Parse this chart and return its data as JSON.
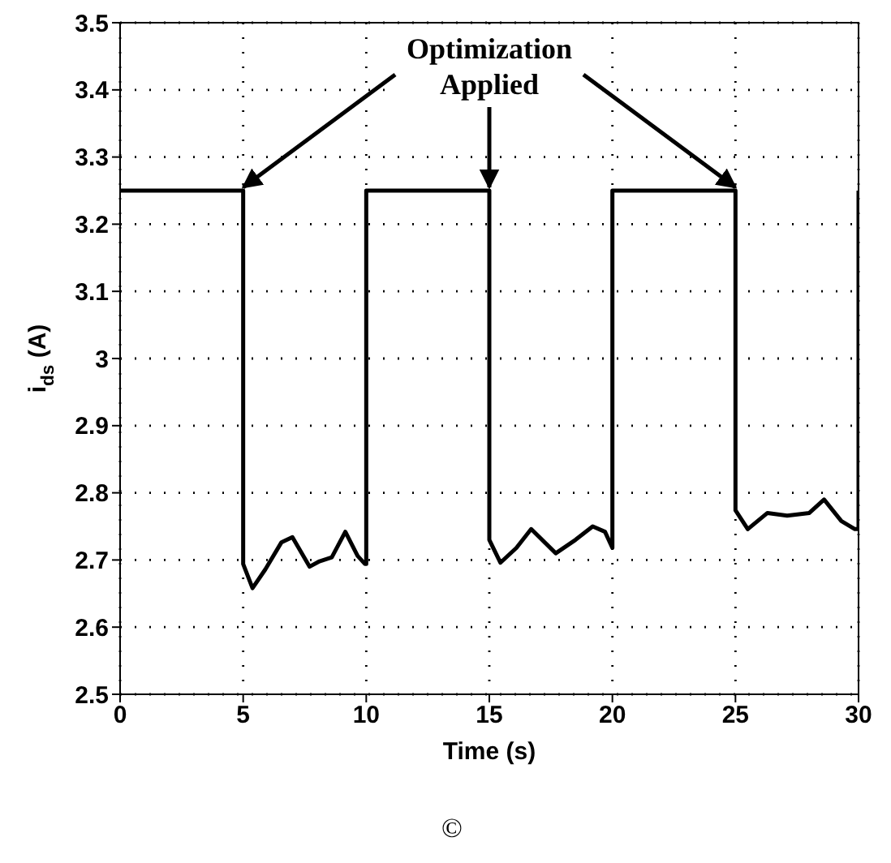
{
  "chart_data": {
    "type": "line",
    "xlabel": "Time (s)",
    "ylabel": "i$_{ds}$ (A)",
    "annotations": [
      {
        "text": "Optimization Applied",
        "x": 15,
        "y": 3.25
      },
      "©"
    ],
    "x": [
      0,
      5,
      5,
      5.38,
      5.9,
      6.55,
      7.0,
      7.7,
      8.1,
      8.6,
      9.15,
      9.65,
      9.95,
      10,
      10,
      15,
      15,
      15.45,
      16.1,
      16.7,
      17.7,
      18.5,
      19.2,
      19.7,
      20,
      20,
      25,
      25,
      25.5,
      26.3,
      27.1,
      28.0,
      28.6,
      29.3,
      29.85,
      30,
      30
    ],
    "series": [
      {
        "color": "#000000",
        "values": [
          3.25,
          3.25,
          2.694,
          2.658,
          2.686,
          2.726,
          2.734,
          2.69,
          2.698,
          2.704,
          2.742,
          2.706,
          2.694,
          2.694,
          3.25,
          3.25,
          2.73,
          2.696,
          2.718,
          2.746,
          2.71,
          2.73,
          2.75,
          2.742,
          2.718,
          3.25,
          3.25,
          2.774,
          2.746,
          2.77,
          2.766,
          2.77,
          2.79,
          2.758,
          2.746,
          2.746,
          3.25
        ]
      }
    ],
    "xlim": [
      0,
      30
    ],
    "xticks": [
      0,
      5,
      10,
      15,
      20,
      25,
      30
    ],
    "ylim": [
      2.5,
      3.5
    ],
    "yticks": [
      2.5,
      2.6,
      2.7,
      2.8,
      2.9,
      3,
      3.1,
      3.2,
      3.3,
      3.4,
      3.5
    ],
    "grid": true,
    "legend": false,
    "marker": "none",
    "line_style": "solid"
  }
}
